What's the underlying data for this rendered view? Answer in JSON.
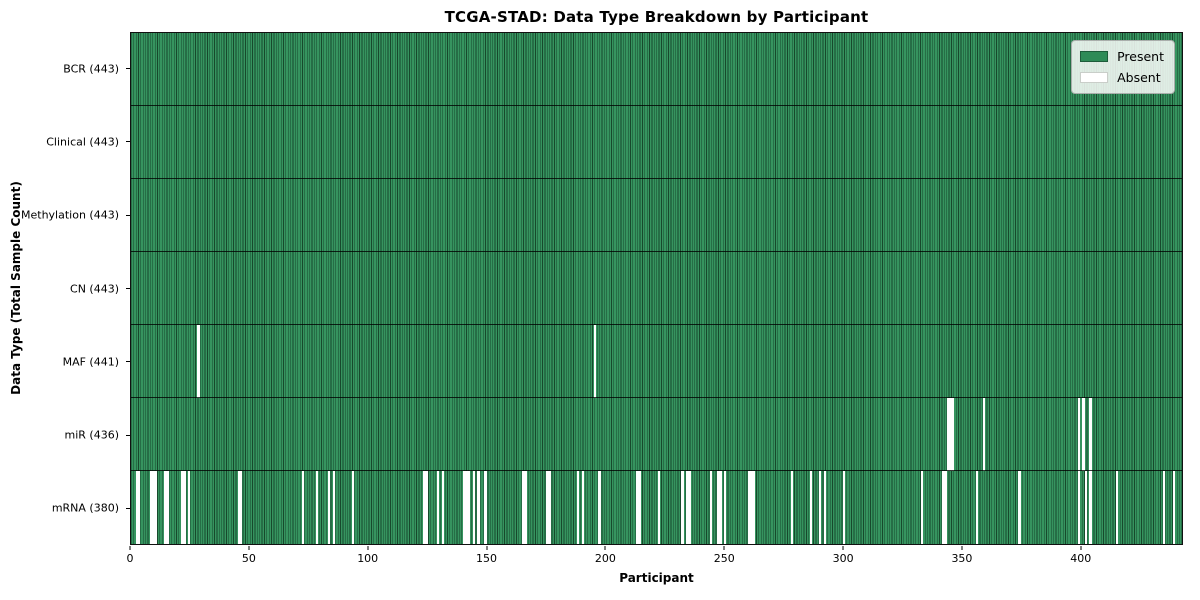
{
  "colors": {
    "present": "#2e8b57",
    "present_edge": "#17492c",
    "absent": "#ffffff",
    "axis": "#000000"
  },
  "legend": {
    "present_label": "Present",
    "absent_label": "Absent"
  },
  "chart_data": {
    "type": "heatmap",
    "title": "TCGA-STAD: Data Type Breakdown by Participant",
    "xlabel": "Participant",
    "ylabel": "Data Type (Total Sample Count)",
    "legend": [
      "Present",
      "Absent"
    ],
    "legend_position": "upper right",
    "grid": false,
    "n_participants": 443,
    "xlim": [
      0,
      443
    ],
    "x_ticks": [
      0,
      50,
      100,
      150,
      200,
      250,
      300,
      350,
      400
    ],
    "rows": [
      {
        "label": "BCR (443)",
        "name": "BCR",
        "total": 443,
        "absent_participants": []
      },
      {
        "label": "Clinical (443)",
        "name": "Clinical",
        "total": 443,
        "absent_participants": []
      },
      {
        "label": "Methylation (443)",
        "name": "Methylation",
        "total": 443,
        "absent_participants": []
      },
      {
        "label": "CN (443)",
        "name": "CN",
        "total": 443,
        "absent_participants": []
      },
      {
        "label": "MAF (441)",
        "name": "MAF",
        "total": 441,
        "absent_participants": [
          28,
          195
        ]
      },
      {
        "label": "miR (436)",
        "name": "miR",
        "total": 436,
        "absent_participants": [
          344,
          345,
          346,
          359,
          399,
          401,
          404
        ]
      },
      {
        "label": "mRNA (380)",
        "name": "mRNA",
        "total": 380,
        "absent_participants": [
          2,
          3,
          8,
          9,
          10,
          14,
          15,
          21,
          22,
          24,
          45,
          46,
          72,
          78,
          83,
          85,
          93,
          123,
          124,
          129,
          131,
          140,
          141,
          142,
          144,
          146,
          149,
          165,
          166,
          175,
          176,
          188,
          190,
          197,
          213,
          214,
          222,
          232,
          234,
          235,
          244,
          247,
          248,
          250,
          260,
          261,
          262,
          278,
          286,
          290,
          292,
          300,
          333,
          342,
          343,
          356,
          374,
          399,
          402,
          404,
          415,
          435,
          439
        ]
      }
    ]
  }
}
